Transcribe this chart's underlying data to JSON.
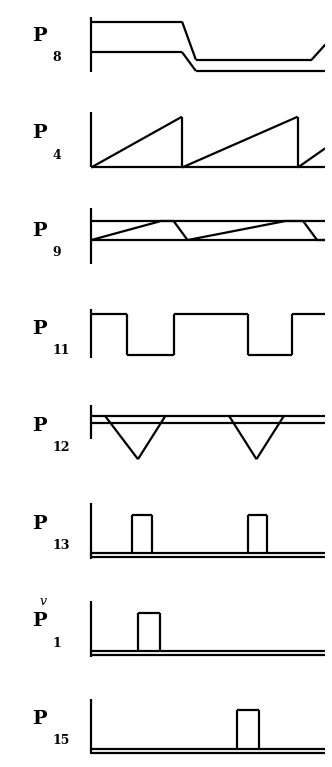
{
  "background": "#ffffff",
  "line_color": "#000000",
  "line_width": 1.6,
  "panels": [
    {
      "label": "P",
      "sub": "8",
      "waveform": "p8",
      "v": false
    },
    {
      "label": "P",
      "sub": "4",
      "waveform": "p4",
      "v": false
    },
    {
      "label": "P",
      "sub": "9",
      "waveform": "p9",
      "v": false
    },
    {
      "label": "P",
      "sub": "11",
      "waveform": "p11",
      "v": false
    },
    {
      "label": "P",
      "sub": "12",
      "waveform": "p12",
      "v": false
    },
    {
      "label": "P",
      "sub": "13",
      "waveform": "p13",
      "v": false
    },
    {
      "label": "P",
      "sub": "1",
      "waveform": "vp1",
      "v": true
    },
    {
      "label": "P",
      "sub": "15",
      "waveform": "p15",
      "v": false
    }
  ]
}
